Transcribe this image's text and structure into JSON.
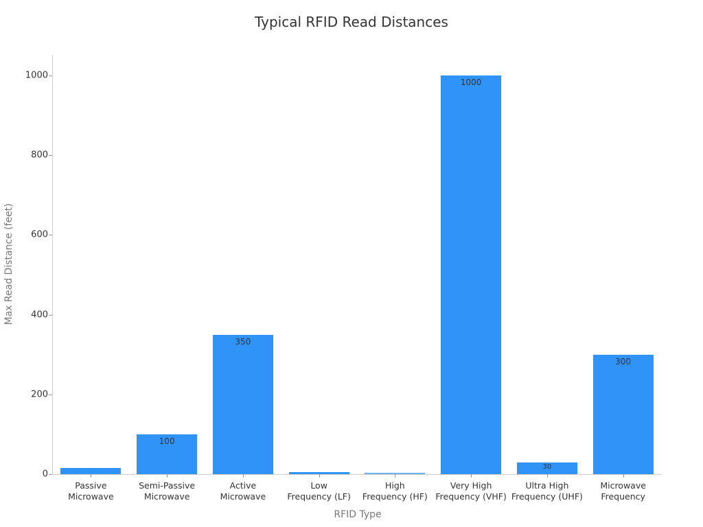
{
  "chart_data": {
    "type": "bar",
    "title": "Typical RFID Read Distances",
    "xlabel": "RFID Type",
    "ylabel": "Max Read Distance (feet)",
    "categories": [
      "Passive Microwave",
      "Semi-Passive Microwave",
      "Active Microwave",
      "Low Frequency (LF)",
      "High Frequency (HF)",
      "Very High Frequency (VHF)",
      "Ultra High Frequency (UHF)",
      "Microwave Frequency"
    ],
    "category_lines": [
      [
        "Passive",
        "Microwave"
      ],
      [
        "Semi-Passive",
        "Microwave"
      ],
      [
        "Active",
        "Microwave"
      ],
      [
        "Low",
        "Frequency (LF)"
      ],
      [
        "High",
        "Frequency (HF)"
      ],
      [
        "Very High",
        "Frequency (VHF)"
      ],
      [
        "Ultra High",
        "Frequency (UHF)"
      ],
      [
        "Microwave",
        "Frequency"
      ]
    ],
    "values": [
      15,
      100,
      350,
      5,
      3,
      1000,
      30,
      300
    ],
    "value_labels": [
      "",
      "100",
      "350",
      "",
      "",
      "1000",
      "30",
      "300"
    ],
    "ylim": [
      0,
      1050
    ],
    "yticks": [
      0,
      200,
      400,
      600,
      800,
      1000
    ],
    "grid": false,
    "legend": null,
    "colors": {
      "bar": "#2f93f7",
      "bar_light": "#6fb3f9",
      "axis": "#cccccc"
    }
  }
}
